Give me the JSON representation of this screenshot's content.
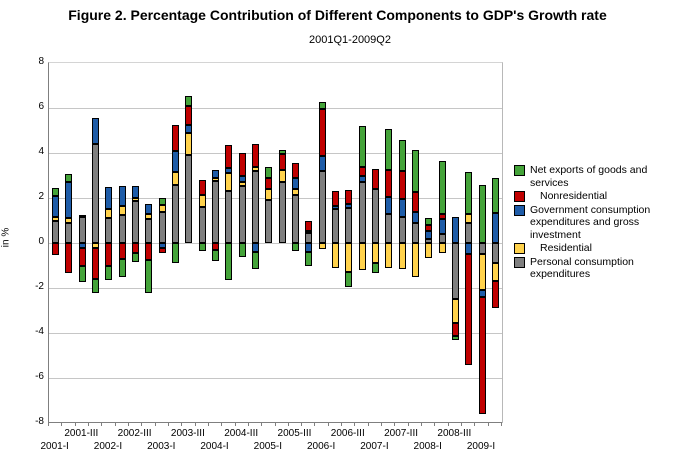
{
  "title": "Figure 2. Percentage Contribution of Different Components to GDP's Growth rate",
  "subtitle": "2001Q1-2009Q2",
  "colors": {
    "net_exports": "#44a339",
    "nonresidential": "#c00000",
    "government": "#1e5ca8",
    "residential": "#ffd24c",
    "personal_consumption": "#7f7f7f",
    "gridline": "#c6c6c6",
    "axis": "#7f7f7f"
  },
  "chart_data": {
    "type": "bar",
    "stacked": true,
    "title": "Figure 2. Percentage Contribution of Different Components to GDP's Growth rate",
    "subtitle": "2001Q1-2009Q2",
    "xlabel": "",
    "ylabel": "in %",
    "ylim": [
      -8,
      8
    ],
    "ytick_step": 2,
    "grid": true,
    "legend_position": "right",
    "categories": [
      "2001-I",
      "2001-II",
      "2001-III",
      "2001-IV",
      "2002-I",
      "2002-II",
      "2002-III",
      "2002-IV",
      "2003-I",
      "2003-II",
      "2003-III",
      "2003-IV",
      "2004-I",
      "2004-II",
      "2004-III",
      "2004-IV",
      "2005-I",
      "2005-II",
      "2005-III",
      "2005-IV",
      "2006-I",
      "2006-II",
      "2006-III",
      "2006-IV",
      "2007-I",
      "2007-II",
      "2007-III",
      "2007-IV",
      "2008-I",
      "2008-II",
      "2008-III",
      "2008-IV",
      "2009-I",
      "2009-II"
    ],
    "x_labels_lower": [
      {
        "text": "2001-I",
        "index": 0
      },
      {
        "text": "2002-I",
        "index": 4
      },
      {
        "text": "2003-I",
        "index": 8
      },
      {
        "text": "2004-I",
        "index": 12
      },
      {
        "text": "2005-I",
        "index": 16
      },
      {
        "text": "2006-I",
        "index": 20
      },
      {
        "text": "2007-I",
        "index": 24
      },
      {
        "text": "2008-I",
        "index": 28
      },
      {
        "text": "2009-I",
        "index": 32
      }
    ],
    "x_labels_upper": [
      {
        "text": "2001-III",
        "index": 2
      },
      {
        "text": "2002-III",
        "index": 6
      },
      {
        "text": "2003-III",
        "index": 10
      },
      {
        "text": "2004-III",
        "index": 14
      },
      {
        "text": "2005-III",
        "index": 18
      },
      {
        "text": "2006-III",
        "index": 22
      },
      {
        "text": "2007-III",
        "index": 26
      },
      {
        "text": "2008-III",
        "index": 30
      }
    ],
    "series": [
      {
        "name": "Personal consumption expenditures",
        "color": "#7f7f7f",
        "indent": false,
        "values": [
          1.0,
          0.9,
          1.15,
          4.4,
          1.1,
          1.25,
          1.85,
          1.05,
          1.4,
          2.6,
          3.9,
          1.6,
          2.75,
          2.3,
          2.55,
          3.2,
          1.9,
          2.7,
          2.15,
          0.45,
          3.2,
          1.5,
          1.55,
          2.7,
          2.4,
          1.3,
          1.15,
          0.9,
          0.2,
          0.4,
          -2.5,
          0.9,
          -0.5,
          -0.9
        ]
      },
      {
        "name": "Residential",
        "color": "#ffd24c",
        "indent": true,
        "values": [
          0.15,
          0.2,
          0.1,
          -0.2,
          0.4,
          0.4,
          0.15,
          0.25,
          0.3,
          0.55,
          1.0,
          0.55,
          0.15,
          0.8,
          0.15,
          0.2,
          0.5,
          0.55,
          0.25,
          0.1,
          -0.25,
          -1.1,
          -1.3,
          -1.2,
          -0.9,
          -1.1,
          -1.15,
          -1.5,
          -0.65,
          -0.45,
          -1.05,
          0.4,
          -1.6,
          -0.8
        ]
      },
      {
        "name": "Government consumption expenditures and gross investment",
        "color": "#1e5ca8",
        "indent": false,
        "values": [
          0.95,
          1.6,
          -0.2,
          1.15,
          1.0,
          0.9,
          0.55,
          0.45,
          -0.2,
          0.95,
          0.35,
          0,
          0.35,
          0.25,
          0.3,
          -0.4,
          0,
          0,
          0.5,
          -0.4,
          0.65,
          0.15,
          0.2,
          0.3,
          0,
          0.75,
          0.8,
          0.5,
          0.35,
          0.65,
          1.15,
          -0.5,
          -0.3,
          1.35
        ]
      },
      {
        "name": "Nonresidential",
        "color": "#c00000",
        "indent": true,
        "values": [
          -0.55,
          -1.35,
          -0.8,
          -1.4,
          -1.0,
          -0.7,
          -0.45,
          -0.75,
          -0.25,
          1.15,
          0.85,
          0.65,
          -0.3,
          1.0,
          1.0,
          1.0,
          0.5,
          0.7,
          0.65,
          0.45,
          2.1,
          0.65,
          0.6,
          0.4,
          0.9,
          1.2,
          1.25,
          0.85,
          0.25,
          0.25,
          -0.6,
          -4.9,
          -5.2,
          -1.2
        ]
      },
      {
        "name": "Net exports of goods and services",
        "color": "#44a339",
        "indent": false,
        "values": [
          0.35,
          0.35,
          -0.75,
          -0.6,
          -0.65,
          -0.8,
          -0.4,
          -1.45,
          0.3,
          -0.9,
          0.45,
          -0.35,
          -0.5,
          -1.65,
          -0.6,
          -0.75,
          0.5,
          0.2,
          -0.35,
          -0.6,
          0.3,
          0,
          -0.65,
          1.8,
          -0.45,
          1.8,
          1.4,
          1.9,
          0.3,
          2.35,
          -0.15,
          1.85,
          2.6,
          1.55
        ]
      }
    ],
    "legend_order": [
      4,
      3,
      2,
      1,
      0
    ]
  }
}
